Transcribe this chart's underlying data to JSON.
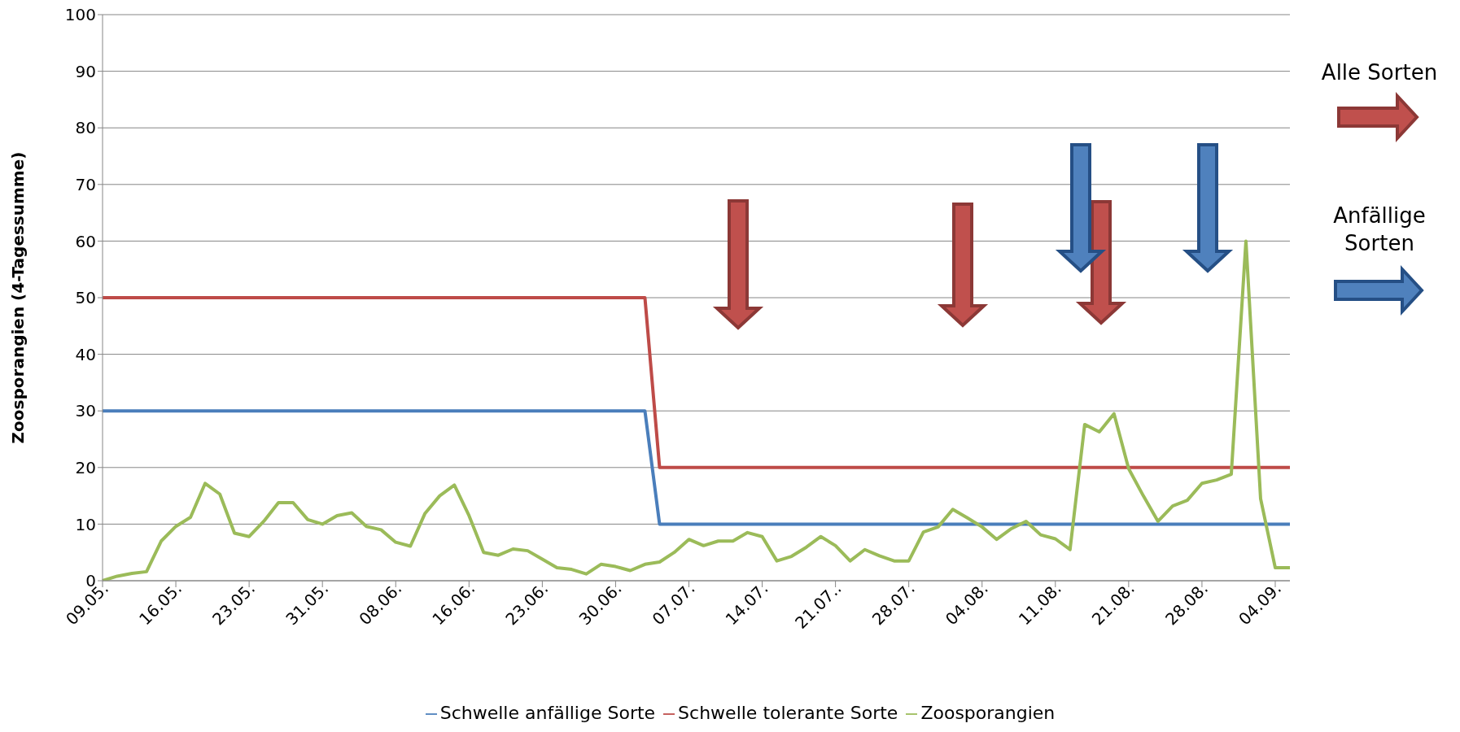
{
  "chart_data": {
    "type": "line",
    "ylabel": "Zoosporangien (4-Tagessumme)",
    "categories": [
      "09.05.",
      null,
      null,
      null,
      null,
      "16.05.",
      null,
      null,
      null,
      null,
      "23.05.",
      null,
      null,
      null,
      null,
      "31.05.",
      null,
      null,
      null,
      null,
      "08.06.",
      null,
      null,
      null,
      null,
      "16.06.",
      null,
      null,
      null,
      null,
      "23.06.",
      null,
      null,
      null,
      null,
      "30.06.",
      null,
      null,
      null,
      null,
      "07.07.",
      null,
      null,
      null,
      null,
      "14.07.",
      null,
      null,
      null,
      null,
      "21.07..",
      null,
      null,
      null,
      null,
      "28.07.",
      null,
      null,
      null,
      null,
      "04.08.",
      null,
      null,
      null,
      null,
      "11.08.",
      null,
      null,
      null,
      null,
      "21.08.",
      null,
      null,
      null,
      null,
      "28.08.",
      null,
      null,
      null,
      null,
      "04.09.",
      null
    ],
    "series": [
      {
        "name": "Schwelle anfällige Sorte",
        "color": "#4a7ebb",
        "values": [
          30,
          30,
          30,
          30,
          30,
          30,
          30,
          30,
          30,
          30,
          30,
          30,
          30,
          30,
          30,
          30,
          30,
          30,
          30,
          30,
          30,
          30,
          30,
          30,
          30,
          30,
          30,
          30,
          30,
          30,
          30,
          30,
          30,
          30,
          30,
          30,
          30,
          30,
          10,
          10,
          10,
          10,
          10,
          10,
          10,
          10,
          10,
          10,
          10,
          10,
          10,
          10,
          10,
          10,
          10,
          10,
          10,
          10,
          10,
          10,
          10,
          10,
          10,
          10,
          10,
          10,
          10,
          10,
          10,
          10,
          10,
          10,
          10,
          10,
          10,
          10,
          10,
          10,
          10,
          10,
          10,
          10
        ]
      },
      {
        "name": "Schwelle tolerante Sorte",
        "color": "#be4b48",
        "values": [
          50,
          50,
          50,
          50,
          50,
          50,
          50,
          50,
          50,
          50,
          50,
          50,
          50,
          50,
          50,
          50,
          50,
          50,
          50,
          50,
          50,
          50,
          50,
          50,
          50,
          50,
          50,
          50,
          50,
          50,
          50,
          50,
          50,
          50,
          50,
          50,
          50,
          50,
          20,
          20,
          20,
          20,
          20,
          20,
          20,
          20,
          20,
          20,
          20,
          20,
          20,
          20,
          20,
          20,
          20,
          20,
          20,
          20,
          20,
          20,
          20,
          20,
          20,
          20,
          20,
          20,
          20,
          20,
          20,
          20,
          20,
          20,
          20,
          20,
          20,
          20,
          20,
          20,
          20,
          20,
          20,
          20
        ]
      },
      {
        "name": "Zoosporangien",
        "color": "#9bbb59",
        "values": [
          0,
          0.8,
          1.3,
          1.6,
          7,
          9.6,
          11.2,
          17.2,
          15.3,
          8.4,
          7.8,
          10.5,
          13.8,
          13.8,
          10.8,
          10,
          11.5,
          12,
          9.6,
          9,
          6.8,
          6.1,
          11.9,
          15,
          16.9,
          11.5,
          5,
          4.5,
          5.6,
          5.3,
          3.8,
          2.3,
          2,
          1.2,
          2.9,
          2.5,
          1.8,
          2.9,
          3.3,
          5,
          7.3,
          6.2,
          7,
          7,
          8.5,
          7.8,
          3.5,
          4.3,
          5.9,
          7.8,
          6.2,
          3.5,
          5.5,
          4.4,
          3.5,
          3.5,
          8.6,
          9.5,
          12.6,
          11.1,
          9.5,
          7.3,
          9.2,
          10.5,
          8.1,
          7.4,
          5.5,
          27.6,
          26.3,
          29.5,
          19.8,
          15,
          10.5,
          13.2,
          14.2,
          17.2,
          17.8,
          18.8,
          60,
          14.5,
          2.3,
          2.3
        ]
      }
    ],
    "ylim": [
      0,
      100
    ],
    "yticks": [
      0,
      10,
      20,
      30,
      40,
      50,
      60,
      70,
      80,
      90,
      100
    ],
    "grid": "y",
    "legend": "bottom",
    "marker": "none",
    "line_style": "solid",
    "annotations": [
      "Alle Sorten",
      "Anfällige Sorten"
    ]
  }
}
